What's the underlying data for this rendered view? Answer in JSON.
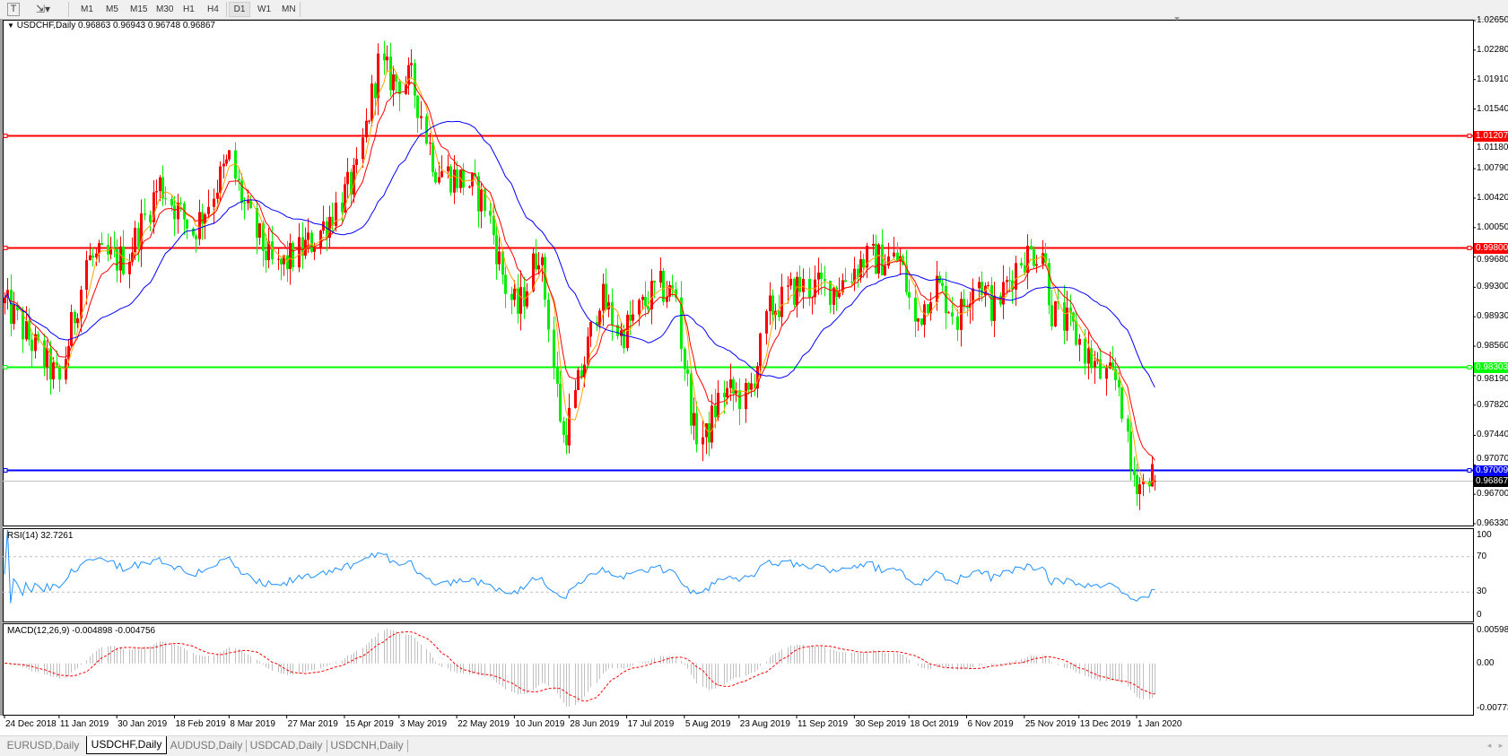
{
  "toolbar": {
    "text_tool_icon": "text-tool-icon",
    "line_tools_icon": "line-tools-icon",
    "timeframes": [
      "M1",
      "M5",
      "M15",
      "M30",
      "H1",
      "H4",
      "D1",
      "W1",
      "MN"
    ],
    "active_timeframe": "D1"
  },
  "chart": {
    "header_arrow": "▼",
    "symbol_label": "USDCHF,Daily",
    "ohlc_label": "0.96863 0.96943 0.96748 0.96867",
    "price_ticks": [
      "1.02650",
      "1.02280",
      "1.01910",
      "1.01540",
      "1.01180",
      "1.00790",
      "1.00420",
      "1.00050",
      "0.99680",
      "0.99300",
      "0.98930",
      "0.98560",
      "0.98190",
      "0.97820",
      "0.97440",
      "0.97070",
      "0.96700",
      "0.96330"
    ],
    "levels": [
      {
        "label": "1.01207",
        "color": "#ff0000"
      },
      {
        "label": "0.99800",
        "color": "#ff0000"
      },
      {
        "label": "0.98303",
        "color": "#00ff00"
      },
      {
        "label": "0.97009",
        "color": "#0000ff"
      }
    ],
    "current_price": {
      "label": "0.96867",
      "color": "#000000"
    },
    "date_ticks": [
      "24 Dec 2018",
      "11 Jan 2019",
      "30 Jan 2019",
      "18 Feb 2019",
      "8 Mar 2019",
      "27 Mar 2019",
      "15 Apr 2019",
      "3 May 2019",
      "22 May 2019",
      "10 Jun 2019",
      "28 Jun 2019",
      "17 Jul 2019",
      "5 Aug 2019",
      "23 Aug 2019",
      "11 Sep 2019",
      "30 Sep 2019",
      "18 Oct 2019",
      "6 Nov 2019",
      "25 Nov 2019",
      "13 Dec 2019",
      "1 Jan 2020"
    ],
    "colors": {
      "bull": "#ff0000",
      "bear": "#00ee00",
      "ma_fast": "#ffa500",
      "ma_mid": "#ff0000",
      "ma_slow": "#0000ff",
      "rsi": "#1e90ff",
      "macd_hist": "#c0c0c0",
      "macd_signal": "#ff0000"
    }
  },
  "rsi": {
    "label": "RSI(14) 32.7261",
    "ticks": [
      "100",
      "70",
      "30",
      "0"
    ]
  },
  "macd": {
    "label": "MACD(12,26,9) -0.004898 -0.004756",
    "ticks": [
      "0.005986",
      "0.00",
      "-0.00773"
    ]
  },
  "tabs": [
    {
      "label": "EURUSD,Daily",
      "active": false
    },
    {
      "label": "USDCHF,Daily",
      "active": true
    },
    {
      "label": "AUDUSD,Daily",
      "active": false
    },
    {
      "label": "USDCAD,Daily",
      "active": false
    },
    {
      "label": "USDCNH,Daily",
      "active": false
    }
  ],
  "scroll_icons": [
    "scroll-left-icon",
    "scroll-right-icon"
  ],
  "chart_data": {
    "type": "candlestick",
    "title": "USDCHF,Daily",
    "ylim": [
      0.9633,
      1.0265
    ],
    "last_bar": {
      "open": 0.96863,
      "high": 0.96943,
      "low": 0.96748,
      "close": 0.96867
    },
    "horizontal_levels": [
      1.01207,
      0.998,
      0.98303,
      0.97009
    ],
    "close_path": [
      [
        "2018-12-24",
        0.991
      ],
      [
        "2019-01-11",
        0.981
      ],
      [
        "2019-01-20",
        0.9965
      ],
      [
        "2019-02-02",
        0.9965
      ],
      [
        "2019-02-13",
        1.006
      ],
      [
        "2019-02-24",
        1.0
      ],
      [
        "2019-03-08",
        1.009
      ],
      [
        "2019-03-14",
        1.002
      ],
      [
        "2019-03-23",
        0.995
      ],
      [
        "2019-04-05",
        0.999
      ],
      [
        "2019-04-19",
        1.007
      ],
      [
        "2019-04-26",
        1.021
      ],
      [
        "2019-05-01",
        1.019
      ],
      [
        "2019-05-07",
        1.019
      ],
      [
        "2019-05-15",
        1.008
      ],
      [
        "2019-05-26",
        1.006
      ],
      [
        "2019-06-01",
        1.003
      ],
      [
        "2019-06-07",
        0.993
      ],
      [
        "2019-06-11",
        0.99
      ],
      [
        "2019-06-18",
        0.998
      ],
      [
        "2019-06-26",
        0.974
      ],
      [
        "2019-06-30",
        0.979
      ],
      [
        "2019-07-08",
        0.992
      ],
      [
        "2019-07-15",
        0.987
      ],
      [
        "2019-07-27",
        0.993
      ],
      [
        "2019-08-02",
        0.992
      ],
      [
        "2019-08-08",
        0.975
      ],
      [
        "2019-08-12",
        0.974
      ],
      [
        "2019-08-17",
        0.98
      ],
      [
        "2019-08-26",
        0.979
      ],
      [
        "2019-09-02",
        0.99
      ],
      [
        "2019-09-11",
        0.993
      ],
      [
        "2019-09-24",
        0.993
      ],
      [
        "2019-10-03",
        0.9965
      ],
      [
        "2019-10-15",
        0.9965
      ],
      [
        "2019-10-20",
        0.988
      ],
      [
        "2019-10-26",
        0.994
      ],
      [
        "2019-11-03",
        0.989
      ],
      [
        "2019-11-09",
        0.995
      ],
      [
        "2019-11-15",
        0.99
      ],
      [
        "2019-11-23",
        0.9965
      ],
      [
        "2019-12-01",
        0.998
      ],
      [
        "2019-12-04",
        0.99
      ],
      [
        "2019-12-10",
        0.988
      ],
      [
        "2019-12-20",
        0.982
      ],
      [
        "2019-12-26",
        0.981
      ],
      [
        "2019-12-30",
        0.97
      ],
      [
        "2020-01-03",
        0.968
      ],
      [
        "2020-01-05",
        0.97
      ],
      [
        "2020-01-07",
        0.96867
      ]
    ],
    "rsi_range": [
      0,
      100
    ],
    "rsi_levels": [
      30,
      70
    ],
    "macd_range": [
      -0.00773,
      0.005986
    ]
  }
}
